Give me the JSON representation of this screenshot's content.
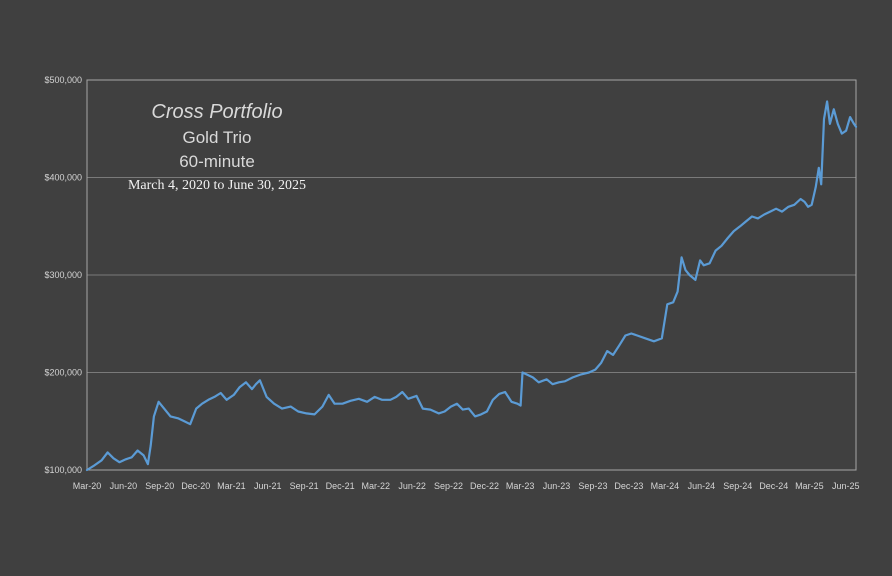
{
  "chart_data": {
    "type": "line",
    "title": "Cross Portfolio",
    "subtitle_lines": [
      "Gold Trio",
      "60-minute",
      "March 4, 2020 to June 30, 2025"
    ],
    "xlabel": "",
    "ylabel": "",
    "ylim": [
      100000,
      500000
    ],
    "yticks": [
      100000,
      200000,
      300000,
      400000,
      500000
    ],
    "ytick_labels": [
      "$100,000",
      "$200,000",
      "$300,000",
      "$400,000",
      "$500,000"
    ],
    "xtick_labels": [
      "Mar-20",
      "Jun-20",
      "Sep-20",
      "Dec-20",
      "Mar-21",
      "Jun-21",
      "Sep-21",
      "Dec-21",
      "Mar-22",
      "Jun-22",
      "Sep-22",
      "Dec-22",
      "Mar-23",
      "Jun-23",
      "Sep-23",
      "Dec-23",
      "Mar-24",
      "Jun-24",
      "Sep-24",
      "Dec-24",
      "Mar-25",
      "Jun-25"
    ],
    "grid": true,
    "legend": "none",
    "colors": {
      "series": "#5b9bd5",
      "background": "#404040",
      "grid": "#7a7a7a"
    },
    "series": [
      {
        "x": [
          "2020-03-04",
          "2020-03-20",
          "2020-04-10",
          "2020-04-25",
          "2020-05-10",
          "2020-05-25",
          "2020-06-10",
          "2020-06-25",
          "2020-07-10",
          "2020-07-25",
          "2020-08-05",
          "2020-08-12",
          "2020-08-20",
          "2020-09-01",
          "2020-09-15",
          "2020-10-01",
          "2020-10-20",
          "2020-11-05",
          "2020-11-20",
          "2020-12-05",
          "2020-12-20",
          "2021-01-05",
          "2021-01-20",
          "2021-02-05",
          "2021-02-20",
          "2021-03-10",
          "2021-03-25",
          "2021-04-10",
          "2021-04-25",
          "2021-05-05",
          "2021-05-15",
          "2021-06-01",
          "2021-06-20",
          "2021-07-10",
          "2021-08-01",
          "2021-08-20",
          "2021-09-10",
          "2021-09-30",
          "2021-10-20",
          "2021-11-05",
          "2021-11-20",
          "2021-12-10",
          "2021-12-30",
          "2022-01-20",
          "2022-02-10",
          "2022-03-01",
          "2022-03-20",
          "2022-04-10",
          "2022-04-25",
          "2022-05-10",
          "2022-05-25",
          "2022-06-15",
          "2022-07-01",
          "2022-07-20",
          "2022-08-10",
          "2022-08-25",
          "2022-09-10",
          "2022-09-25",
          "2022-10-10",
          "2022-10-25",
          "2022-11-10",
          "2022-11-25",
          "2022-12-10",
          "2022-12-25",
          "2023-01-10",
          "2023-01-25",
          "2023-02-10",
          "2023-02-25",
          "2023-03-05",
          "2023-03-10",
          "2023-03-20",
          "2023-04-05",
          "2023-04-20",
          "2023-05-10",
          "2023-05-25",
          "2023-06-10",
          "2023-06-25",
          "2023-07-15",
          "2023-08-05",
          "2023-08-25",
          "2023-09-10",
          "2023-09-25",
          "2023-10-10",
          "2023-10-25",
          "2023-11-10",
          "2023-11-25",
          "2023-12-10",
          "2023-12-25",
          "2024-01-15",
          "2024-02-05",
          "2024-02-25",
          "2024-03-10",
          "2024-03-25",
          "2024-04-05",
          "2024-04-15",
          "2024-04-25",
          "2024-05-05",
          "2024-05-20",
          "2024-06-01",
          "2024-06-10",
          "2024-06-25",
          "2024-07-10",
          "2024-07-25",
          "2024-08-10",
          "2024-08-25",
          "2024-09-10",
          "2024-09-25",
          "2024-10-10",
          "2024-10-25",
          "2024-11-10",
          "2024-11-25",
          "2024-12-10",
          "2024-12-25",
          "2025-01-10",
          "2025-01-25",
          "2025-02-10",
          "2025-02-20",
          "2025-03-01",
          "2025-03-10",
          "2025-03-20",
          "2025-03-28",
          "2025-04-03",
          "2025-04-10",
          "2025-04-18",
          "2025-04-25",
          "2025-05-05",
          "2025-05-15",
          "2025-05-25",
          "2025-06-05",
          "2025-06-15",
          "2025-06-25",
          "2025-06-30"
        ],
        "values": [
          100000,
          104000,
          110000,
          118000,
          112000,
          108000,
          111000,
          113000,
          120000,
          115000,
          106000,
          125000,
          155000,
          170000,
          163000,
          155000,
          153000,
          150000,
          147000,
          163000,
          168000,
          172000,
          175000,
          179000,
          172000,
          177000,
          185000,
          190000,
          183000,
          188000,
          192000,
          175000,
          168000,
          163000,
          165000,
          160000,
          158000,
          157000,
          165000,
          177000,
          168000,
          168000,
          171000,
          173000,
          170000,
          175000,
          172000,
          172000,
          175000,
          180000,
          173000,
          176000,
          163000,
          162000,
          158000,
          160000,
          165000,
          168000,
          162000,
          163000,
          155000,
          157000,
          160000,
          172000,
          178000,
          180000,
          170000,
          168000,
          166000,
          200000,
          198000,
          195000,
          190000,
          193000,
          188000,
          190000,
          191000,
          195000,
          198000,
          200000,
          203000,
          210000,
          222000,
          218000,
          228000,
          238000,
          240000,
          238000,
          235000,
          232000,
          235000,
          270000,
          272000,
          283000,
          318000,
          305000,
          300000,
          295000,
          315000,
          310000,
          312000,
          325000,
          330000,
          338000,
          345000,
          350000,
          355000,
          360000,
          358000,
          362000,
          365000,
          368000,
          365000,
          370000,
          372000,
          378000,
          375000,
          370000,
          372000,
          390000,
          410000,
          393000,
          460000,
          478000,
          455000,
          470000,
          455000,
          445000,
          448000,
          462000,
          455000,
          452000
        ]
      }
    ]
  }
}
